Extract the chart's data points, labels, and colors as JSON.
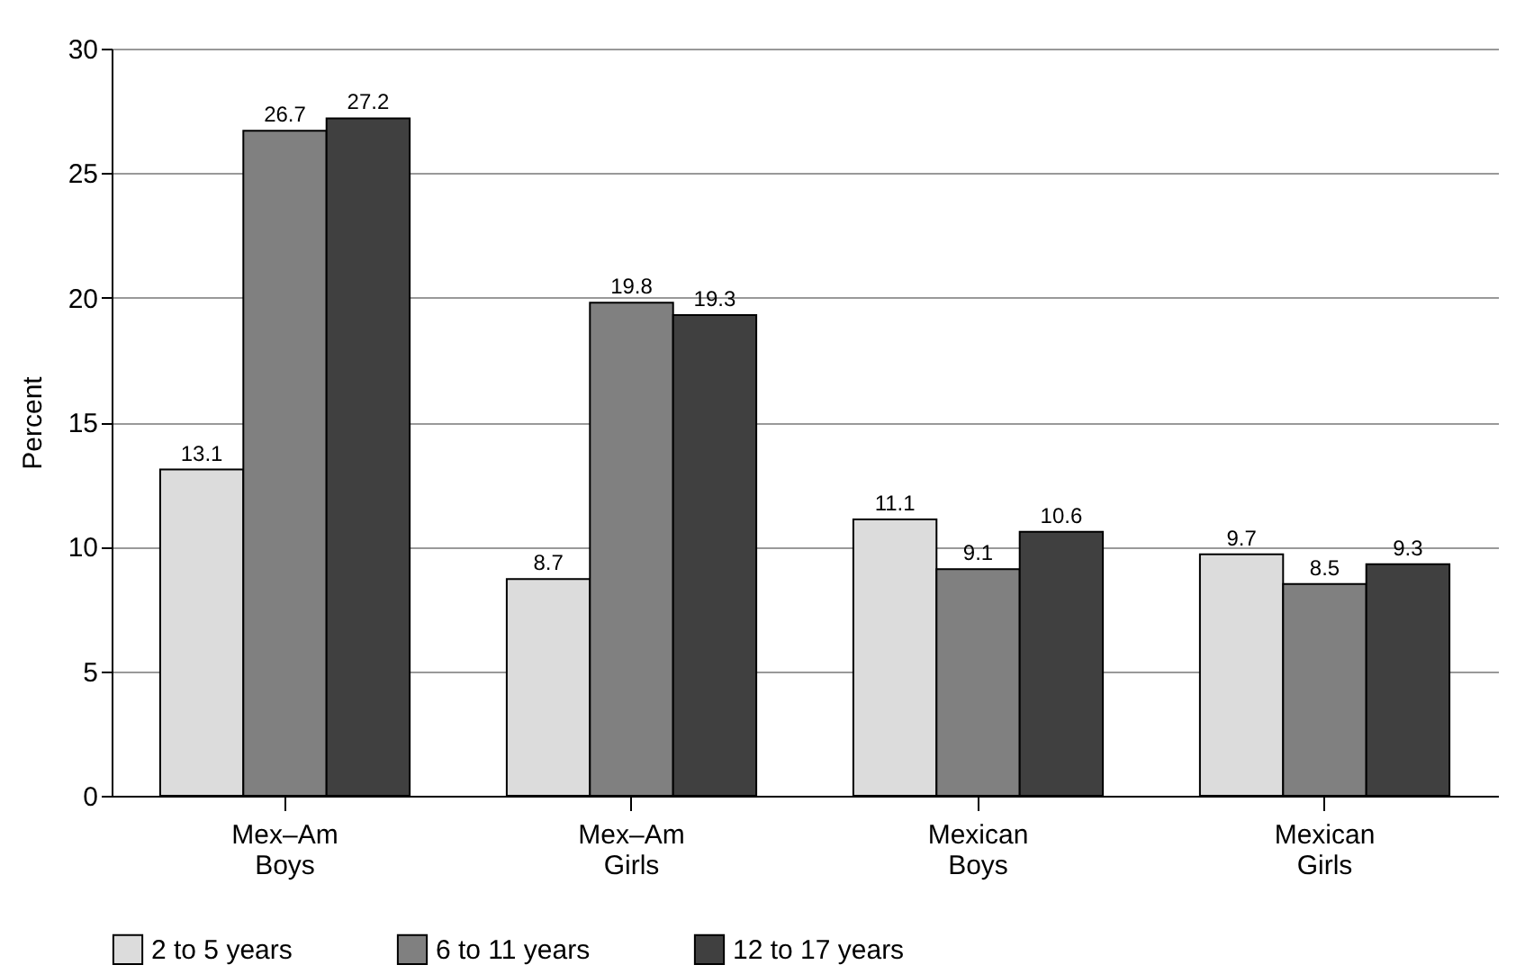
{
  "chart_data": {
    "type": "bar",
    "ylabel": "Percent",
    "categories": [
      "Mex–Am Boys",
      "Mex–Am Girls",
      "Mexican Boys",
      "Mexican Girls"
    ],
    "series": [
      {
        "name": "2 to 5 years",
        "color": "#dcdcdc",
        "values": [
          13.1,
          8.7,
          11.1,
          9.7
        ]
      },
      {
        "name": "6 to 11 years",
        "color": "#808080",
        "values": [
          26.7,
          19.8,
          9.1,
          8.5
        ]
      },
      {
        "name": "12 to 17 years",
        "color": "#404040",
        "values": [
          27.2,
          19.3,
          10.6,
          9.3
        ]
      }
    ],
    "ylim": [
      0,
      30
    ],
    "yticks": [
      0,
      5,
      10,
      15,
      20,
      25,
      30
    ],
    "grid": "y",
    "legend": "bottom",
    "data_labels": true
  }
}
